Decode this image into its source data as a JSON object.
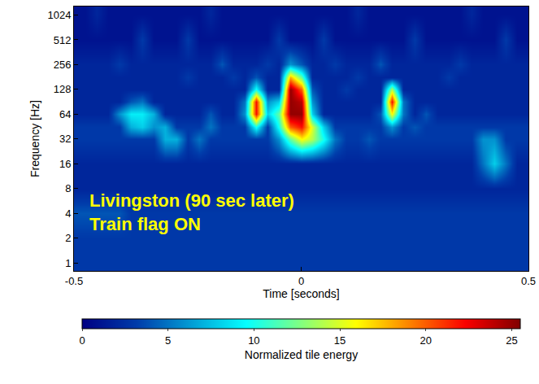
{
  "chart_data": {
    "type": "heatmap",
    "x_label": "Time [seconds]",
    "y_label": "Frequency [Hz]",
    "log": "y",
    "grid": false,
    "color": "Jet",
    "annotations": [
      "Livingston (90 sec later)",
      "Train flag ON"
    ],
    "xlim": [
      -0.5,
      0.5
    ],
    "xticks": [
      -0.5,
      0,
      0.5
    ],
    "ylim": [
      0.8,
      1300
    ],
    "yticks": [
      1,
      2,
      4,
      8,
      16,
      32,
      64,
      128,
      256,
      512,
      1024
    ],
    "x": [
      -0.5,
      -0.475,
      -0.45,
      -0.425,
      -0.4,
      -0.375,
      -0.35,
      -0.325,
      -0.3,
      -0.275,
      -0.25,
      -0.225,
      -0.2,
      -0.175,
      -0.15,
      -0.125,
      -0.1,
      -0.075,
      -0.05,
      -0.025,
      0,
      0.025,
      0.05,
      0.075,
      0.1,
      0.125,
      0.15,
      0.175,
      0.2,
      0.225,
      0.25,
      0.275,
      0.3,
      0.325,
      0.35,
      0.375,
      0.4,
      0.425,
      0.45,
      0.475,
      0.5
    ],
    "y": [
      1,
      2,
      4,
      8,
      16,
      32,
      45,
      64,
      90,
      128,
      181,
      256,
      512,
      1024
    ],
    "z": [
      [
        3,
        3,
        3,
        3,
        3,
        3,
        3,
        3,
        3,
        3,
        3,
        3,
        3,
        3,
        3,
        3,
        3,
        3,
        3,
        3,
        3,
        3,
        3,
        3,
        3,
        3,
        3,
        3,
        3,
        3,
        3,
        3,
        3,
        3,
        3,
        3,
        3,
        3,
        3,
        3,
        3
      ],
      [
        3,
        3,
        3,
        3,
        3,
        3,
        3,
        3,
        3,
        3,
        3,
        3,
        3,
        3,
        3,
        3,
        3,
        3,
        3,
        3,
        3,
        3,
        3,
        3,
        3,
        3,
        3,
        3,
        3,
        3,
        3,
        3,
        3,
        3,
        3,
        3,
        3,
        3,
        3,
        3,
        3
      ],
      [
        4,
        4,
        4,
        4,
        4,
        3,
        3,
        3,
        3,
        3,
        3,
        3,
        3,
        3,
        3,
        3,
        3,
        3,
        3,
        3,
        3,
        3,
        3,
        3,
        3,
        3,
        3,
        3,
        3,
        3,
        3,
        3,
        3,
        3,
        3,
        3,
        3,
        3,
        3,
        3,
        3
      ],
      [
        2,
        2,
        2,
        2,
        2,
        2,
        2,
        2,
        2,
        2,
        2,
        2,
        2,
        2,
        2,
        2,
        2,
        2,
        2,
        2,
        2,
        2,
        2,
        2,
        2,
        2,
        2,
        2,
        2,
        2,
        2,
        2,
        2,
        2,
        2,
        2,
        2,
        2,
        2,
        2,
        2
      ],
      [
        2,
        2,
        2,
        2,
        2,
        2,
        2,
        2,
        2,
        2,
        2,
        2,
        2,
        2,
        2,
        2,
        2,
        2,
        2,
        2,
        2,
        2,
        2,
        2,
        2,
        2,
        2,
        2,
        2,
        2,
        2,
        2,
        2,
        2,
        2,
        2,
        5,
        8,
        5,
        2,
        2
      ],
      [
        3,
        3,
        3,
        3,
        3,
        3,
        3,
        3,
        7,
        7,
        3,
        5,
        3,
        3,
        3,
        3,
        3,
        3,
        6,
        12,
        16,
        14,
        10,
        5,
        3,
        3,
        4,
        3,
        3,
        3,
        3,
        3,
        3,
        3,
        3,
        3,
        6,
        6,
        3,
        3,
        3
      ],
      [
        3,
        3,
        3,
        3,
        3,
        7,
        8,
        6,
        7,
        3,
        3,
        3,
        5,
        3,
        3,
        3,
        10,
        3,
        10,
        20,
        22,
        15,
        8,
        3,
        3,
        3,
        3,
        3,
        6,
        3,
        4,
        3,
        3,
        3,
        3,
        3,
        3,
        3,
        3,
        3,
        3
      ],
      [
        2,
        2,
        2,
        2,
        6,
        9,
        9,
        7,
        2,
        2,
        2,
        2,
        4,
        2,
        2,
        6,
        22,
        8,
        12,
        25,
        25,
        8,
        2,
        2,
        2,
        2,
        2,
        4,
        16,
        5,
        2,
        4,
        2,
        2,
        2,
        2,
        2,
        2,
        2,
        2,
        2
      ],
      [
        2,
        2,
        2,
        2,
        2,
        4,
        5,
        2,
        2,
        2,
        2,
        2,
        2,
        2,
        2,
        5,
        22,
        6,
        8,
        25,
        24,
        6,
        2,
        2,
        2,
        2,
        2,
        2,
        22,
        5,
        2,
        2,
        2,
        2,
        2,
        2,
        2,
        2,
        2,
        2,
        2
      ],
      [
        2,
        2,
        2,
        2,
        2,
        2,
        2,
        2,
        2,
        2,
        2,
        2,
        2,
        2,
        2,
        2,
        10,
        2,
        2,
        25,
        20,
        4,
        2,
        2,
        3,
        2,
        2,
        2,
        14,
        2,
        2,
        2,
        2,
        2,
        2,
        2,
        2,
        2,
        2,
        2,
        2
      ],
      [
        2,
        2,
        2,
        2,
        2,
        2,
        2,
        2,
        2,
        2,
        3,
        2,
        2,
        2,
        3,
        2,
        4,
        2,
        2,
        18,
        12,
        2,
        2,
        2,
        2,
        3,
        2,
        2,
        2,
        2,
        2,
        2,
        2,
        3,
        2,
        2,
        2,
        2,
        2,
        2,
        2
      ],
      [
        2,
        2,
        2,
        2,
        3,
        2,
        2,
        2,
        2,
        2,
        2,
        2,
        2,
        4,
        2,
        2,
        2,
        3,
        2,
        6,
        4,
        2,
        2,
        3,
        2,
        2,
        2,
        4,
        2,
        2,
        2,
        2,
        2,
        2,
        3,
        2,
        2,
        2,
        2,
        2,
        2
      ],
      [
        1,
        1,
        1,
        1,
        1,
        1,
        3,
        1,
        1,
        1,
        3,
        1,
        1,
        1,
        1,
        1,
        1,
        1,
        3,
        1,
        1,
        1,
        3,
        1,
        1,
        1,
        1,
        1,
        1,
        1,
        3,
        1,
        1,
        1,
        1,
        1,
        1,
        1,
        3,
        1,
        1
      ],
      [
        1,
        1,
        2,
        1,
        1,
        1,
        1,
        1,
        1,
        1,
        1,
        1,
        2,
        1,
        1,
        1,
        1,
        1,
        1,
        1,
        1,
        1,
        1,
        1,
        1,
        2,
        1,
        1,
        1,
        1,
        1,
        1,
        1,
        1,
        1,
        2,
        1,
        1,
        1,
        1,
        1
      ]
    ],
    "colorbar": {
      "title": "Normalized tile energy",
      "range": [
        0,
        25.5
      ],
      "ticks": [
        0,
        5,
        10,
        15,
        20,
        25
      ]
    }
  }
}
